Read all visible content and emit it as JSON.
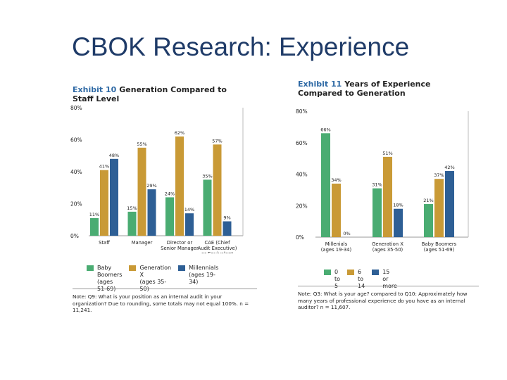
{
  "slide_title": "CBOK Research: Experience",
  "colors": {
    "green": "#4aac72",
    "gold": "#c99a36",
    "blue": "#2e5f95"
  },
  "exhibits": [
    {
      "number": "Exhibit 10",
      "title": "Generation Compared to Staff Level",
      "legend": [
        {
          "label": "Baby Boomers",
          "sub": "(ages 51-69)",
          "color": "#4aac72"
        },
        {
          "label": "Generation X",
          "sub": "(ages 35-50)",
          "color": "#c99a36"
        },
        {
          "label": "Millennials",
          "sub": "(ages 19-34)",
          "color": "#2e5f95"
        }
      ],
      "note": "Note: Q9: What is your position as an internal audit in your organization? Due to rounding, some totals may not equal 100%. n = 11,241."
    },
    {
      "number": "Exhibit 11",
      "title": "Years of Experience Compared to Generation",
      "legend": [
        {
          "label": "0 to 5",
          "sub": "",
          "color": "#4aac72"
        },
        {
          "label": "6 to 14",
          "sub": "",
          "color": "#c99a36"
        },
        {
          "label": "15 or more",
          "sub": "",
          "color": "#2e5f95"
        }
      ],
      "note": "Note: Q3: What is your age? compared to Q10: Approximately how many years of professional experience do you have as an internal auditor? n = 11,607."
    }
  ],
  "chart_data": [
    {
      "type": "bar",
      "title": "Generation Compared to Staff Level",
      "categories": [
        "Staff",
        "Manager",
        "Director or Senior Manager",
        "CAE (Chief Audit Executive) or Equivalent"
      ],
      "category_lines": [
        [
          "Staff"
        ],
        [
          "Manager"
        ],
        [
          "Director or",
          "Senior Manager"
        ],
        [
          "CAE (Chief",
          "Audit Executive)",
          "or Equivalent"
        ]
      ],
      "series": [
        {
          "name": "Baby Boomers",
          "values": [
            11,
            15,
            24,
            35
          ]
        },
        {
          "name": "Generation X",
          "values": [
            41,
            55,
            62,
            57
          ]
        },
        {
          "name": "Millennials",
          "values": [
            48,
            29,
            14,
            9
          ]
        }
      ],
      "yticks": [
        "0%",
        "20%",
        "40%",
        "60%",
        "80%"
      ],
      "ylim": [
        0,
        80
      ],
      "grid": false
    },
    {
      "type": "bar",
      "title": "Years of Experience Compared to Generation",
      "categories": [
        "Millenials (ages 19-34)",
        "Generation X (ages 35-50)",
        "Baby Boomers (ages 51-69)"
      ],
      "category_lines": [
        [
          "Millenials",
          "(ages 19-34)"
        ],
        [
          "Generation X",
          "(ages 35-50)"
        ],
        [
          "Baby Boomers",
          "(ages 51-69)"
        ]
      ],
      "series": [
        {
          "name": "0 to 5",
          "values": [
            66,
            31,
            21
          ]
        },
        {
          "name": "6 to 14",
          "values": [
            34,
            51,
            37
          ]
        },
        {
          "name": "15 or more",
          "values": [
            0,
            18,
            42
          ]
        }
      ],
      "yticks": [
        "0%",
        "20%",
        "40%",
        "60%",
        "80%"
      ],
      "ylim": [
        0,
        80
      ],
      "grid": false
    }
  ]
}
